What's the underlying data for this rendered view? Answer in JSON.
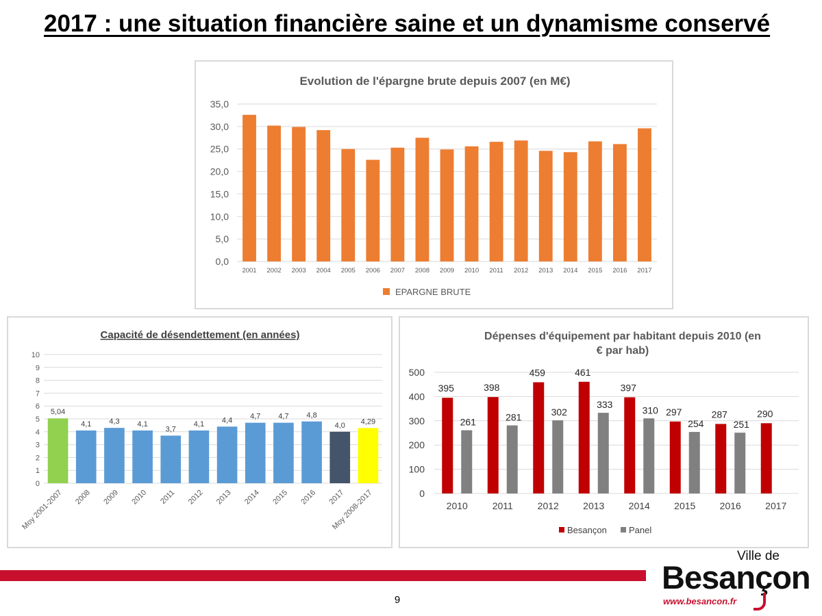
{
  "slide": {
    "title": "2017 : une situation financière saine et un dynamisme conservé",
    "page_number": "9"
  },
  "logo": {
    "prefix": "Ville de",
    "name": "Besançon",
    "url": "www.besancon.fr",
    "accent_color": "#c8102e"
  },
  "chart_data": [
    {
      "type": "bar",
      "title": "Evolution de l'épargne brute depuis 2007 (en M€)",
      "xlabel": "",
      "ylabel": "",
      "categories": [
        "2001",
        "2002",
        "2003",
        "2004",
        "2005",
        "2006",
        "2007",
        "2008",
        "2009",
        "2010",
        "2011",
        "2012",
        "2013",
        "2014",
        "2015",
        "2016",
        "2017"
      ],
      "series": [
        {
          "name": "EPARGNE BRUTE",
          "color": "#ed7d31",
          "values": [
            32.6,
            30.2,
            29.9,
            29.2,
            25.0,
            22.6,
            25.3,
            27.5,
            24.9,
            25.6,
            26.6,
            26.9,
            24.6,
            24.3,
            26.7,
            26.1,
            29.6
          ]
        }
      ],
      "ylim": [
        0,
        35
      ],
      "y_ticks": [
        "0,0",
        "5,0",
        "10,0",
        "15,0",
        "20,0",
        "25,0",
        "30,0",
        "35,0"
      ],
      "grid": true,
      "legend": "bottom"
    },
    {
      "type": "bar",
      "title": "Capacité de désendettement (en années)",
      "xlabel": "",
      "ylabel": "",
      "categories": [
        "Moy 2001-2007",
        "2008",
        "2009",
        "2010",
        "2011",
        "2012",
        "2013",
        "2014",
        "2015",
        "2016",
        "2017",
        "Moy 2008-2017"
      ],
      "values": [
        5.04,
        4.1,
        4.3,
        4.1,
        3.7,
        4.1,
        4.4,
        4.7,
        4.7,
        4.8,
        4.0,
        4.29
      ],
      "data_labels": [
        "5,04",
        "4,1",
        "4,3",
        "4,1",
        "3,7",
        "4,1",
        "4,4",
        "4,7",
        "4,7",
        "4,8",
        "4,0",
        "4,29"
      ],
      "colors": [
        "#92d050",
        "#5b9bd5",
        "#5b9bd5",
        "#5b9bd5",
        "#5b9bd5",
        "#5b9bd5",
        "#5b9bd5",
        "#5b9bd5",
        "#5b9bd5",
        "#5b9bd5",
        "#44546a",
        "#ffff00"
      ],
      "ylim": [
        0,
        10
      ],
      "y_ticks": [
        "0",
        "1",
        "2",
        "3",
        "4",
        "5",
        "6",
        "7",
        "8",
        "9",
        "10"
      ],
      "grid": true
    },
    {
      "type": "bar",
      "title": "Dépenses d'équipement par habitant depuis 2010 (en € par hab)",
      "xlabel": "",
      "ylabel": "",
      "categories": [
        "2010",
        "2011",
        "2012",
        "2013",
        "2014",
        "2015",
        "2016",
        "2017"
      ],
      "series": [
        {
          "name": "Besançon",
          "color": "#c00000",
          "values": [
            395,
            398,
            459,
            461,
            397,
            297,
            287,
            290
          ]
        },
        {
          "name": "Panel",
          "color": "#808080",
          "values": [
            261,
            281,
            302,
            333,
            310,
            254,
            251,
            null
          ]
        }
      ],
      "ylim": [
        0,
        500
      ],
      "y_ticks": [
        "0",
        "100",
        "200",
        "300",
        "400",
        "500"
      ],
      "grid": true,
      "legend": "bottom"
    }
  ]
}
